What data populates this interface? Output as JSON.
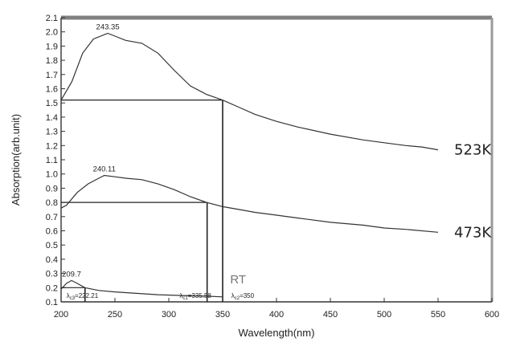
{
  "chart_data": {
    "type": "line",
    "xlabel": "Wavelength(nm)",
    "ylabel": "Absorption(arb.unit)",
    "xlim": [
      200,
      600
    ],
    "ylim": [
      0.1,
      2.1
    ],
    "x_ticks": [
      "200",
      "250",
      "300",
      "350",
      "400",
      "450",
      "500",
      "550",
      "600"
    ],
    "y_ticks": [
      "0.1",
      "0.2",
      "0.3",
      "0.4",
      "0.5",
      "0.6",
      "0.7",
      "0.8",
      "0.9",
      "1.0",
      "1.1",
      "1.2",
      "1.3",
      "1.4",
      "1.5",
      "1.6",
      "1.7",
      "1.8",
      "1.9",
      "2.0",
      "2.1"
    ],
    "grid": false,
    "series": [
      {
        "name": "523K",
        "label_color": "#222222",
        "points": [
          [
            200,
            1.52
          ],
          [
            210,
            1.65
          ],
          [
            220,
            1.85
          ],
          [
            230,
            1.95
          ],
          [
            240,
            1.98
          ],
          [
            243.35,
            1.99
          ],
          [
            250,
            1.97
          ],
          [
            260,
            1.94
          ],
          [
            275,
            1.92
          ],
          [
            290,
            1.85
          ],
          [
            305,
            1.73
          ],
          [
            320,
            1.62
          ],
          [
            335,
            1.56
          ],
          [
            350,
            1.52
          ],
          [
            365,
            1.47
          ],
          [
            380,
            1.42
          ],
          [
            400,
            1.37
          ],
          [
            420,
            1.33
          ],
          [
            450,
            1.28
          ],
          [
            480,
            1.24
          ],
          [
            500,
            1.22
          ],
          [
            520,
            1.2
          ],
          [
            535,
            1.19
          ],
          [
            550,
            1.17
          ]
        ],
        "peak": {
          "x": 243.35,
          "y": 1.99,
          "label": "243.35"
        }
      },
      {
        "name": "473K",
        "label_color": "#222222",
        "points": [
          [
            200,
            0.76
          ],
          [
            205,
            0.78
          ],
          [
            215,
            0.87
          ],
          [
            225,
            0.93
          ],
          [
            235,
            0.97
          ],
          [
            240.11,
            0.99
          ],
          [
            250,
            0.98
          ],
          [
            260,
            0.97
          ],
          [
            275,
            0.96
          ],
          [
            290,
            0.93
          ],
          [
            305,
            0.89
          ],
          [
            320,
            0.84
          ],
          [
            335,
            0.8
          ],
          [
            350,
            0.77
          ],
          [
            365,
            0.75
          ],
          [
            380,
            0.73
          ],
          [
            400,
            0.71
          ],
          [
            420,
            0.69
          ],
          [
            450,
            0.66
          ],
          [
            480,
            0.64
          ],
          [
            500,
            0.62
          ],
          [
            520,
            0.61
          ],
          [
            550,
            0.59
          ]
        ],
        "peak": {
          "x": 240.11,
          "y": 0.99,
          "label": "240.11"
        }
      },
      {
        "name": "RT",
        "label_color": "#777777",
        "points": [
          [
            200,
            0.19
          ],
          [
            205,
            0.23
          ],
          [
            209.7,
            0.25
          ],
          [
            215,
            0.23
          ],
          [
            222,
            0.2
          ],
          [
            235,
            0.18
          ],
          [
            250,
            0.17
          ],
          [
            270,
            0.16
          ],
          [
            290,
            0.15
          ],
          [
            310,
            0.145
          ],
          [
            335,
            0.14
          ],
          [
            350,
            0.135
          ]
        ],
        "peak": {
          "x": 209.7,
          "y": 0.25,
          "label": "209.7"
        }
      }
    ],
    "cutoff_lines": [
      {
        "series": "523K",
        "x": 350,
        "y": 1.52
      },
      {
        "series": "473K",
        "x": 335.58,
        "y": 0.8
      },
      {
        "series": "RT",
        "x": 222.21,
        "y": 0.2
      }
    ],
    "lambda_labels": [
      {
        "prefix": "λ",
        "sub": "c3",
        "value": "=222.21",
        "x": 222.21
      },
      {
        "prefix": "λ",
        "sub": "c1",
        "value": "=335.58",
        "x": 335.58
      },
      {
        "prefix": "λ",
        "sub": "c2",
        "value": "=350",
        "x": 350
      }
    ]
  }
}
